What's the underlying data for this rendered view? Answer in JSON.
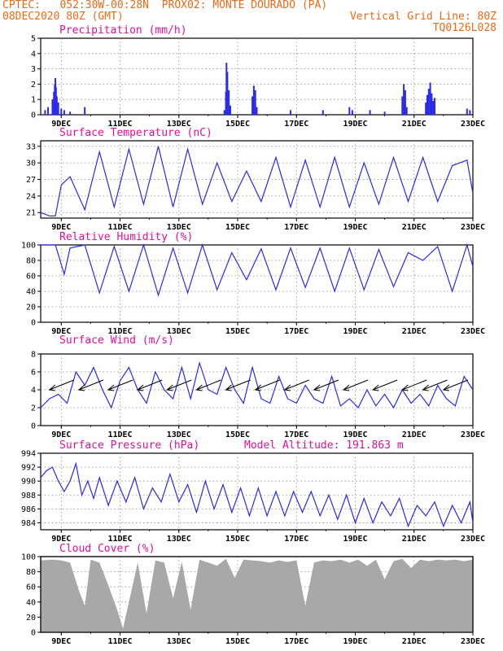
{
  "header": {
    "left1": "CPTEC:   052:30W-00:28N  PROX02: MONTE DOURADO (PA)",
    "left2": "08DEC2020 80Z (GMT)",
    "right2": "Vertical Grid Line: 80Z",
    "right3": "TQ0126L028"
  },
  "colors": {
    "header": "#e86a1a",
    "title": "#e0109a",
    "series": "#2a2ae8",
    "cloud": "#a8a8a8"
  },
  "x_axis": {
    "ticks": [
      "9DEC",
      "11DEC",
      "13DEC",
      "15DEC",
      "17DEC",
      "19DEC",
      "21DEC",
      "23DEC"
    ],
    "day_range": [
      8.3,
      23.0
    ]
  },
  "chart_data": [
    {
      "type": "bar",
      "title": "Precipitation (mm/h)",
      "ylim": [
        0,
        5
      ],
      "yticks": [
        "0",
        "1",
        "2",
        "3",
        "4",
        "5"
      ],
      "grid": true,
      "series": [
        {
          "days": [
            8.45,
            8.55,
            8.7,
            8.75,
            8.78,
            8.8,
            8.82,
            8.85,
            8.9,
            9.0,
            9.1,
            9.3,
            9.8,
            14.55,
            14.6,
            14.62,
            14.65,
            14.7,
            14.75,
            15.5,
            15.55,
            15.6,
            15.65,
            16.8,
            17.9,
            18.8,
            18.9,
            19.5,
            20.0,
            20.6,
            20.65,
            20.7,
            20.75,
            21.4,
            21.45,
            21.5,
            21.55,
            21.6,
            21.65,
            21.7,
            22.8,
            22.9
          ],
          "values": [
            0.3,
            0.5,
            1.0,
            1.5,
            2.0,
            2.4,
            1.8,
            1.2,
            0.8,
            0.4,
            0.3,
            0.2,
            0.5,
            0.3,
            1.5,
            3.4,
            2.8,
            1.6,
            0.6,
            1.2,
            1.9,
            1.6,
            0.5,
            0.3,
            0.3,
            0.5,
            0.3,
            0.3,
            0.2,
            1.2,
            2.0,
            1.6,
            0.5,
            0.8,
            1.3,
            1.7,
            2.1,
            1.4,
            0.9,
            1.1,
            0.4,
            0.3
          ]
        }
      ]
    },
    {
      "type": "line",
      "title": "Surface Temperature (nC)",
      "ylim": [
        20,
        34
      ],
      "yticks": [
        "21",
        "24",
        "27",
        "30",
        "33"
      ],
      "grid": true,
      "series": [
        {
          "days": [
            8.3,
            8.6,
            8.8,
            9.0,
            9.3,
            9.8,
            10.3,
            10.8,
            11.3,
            11.8,
            12.3,
            12.8,
            13.3,
            13.8,
            14.3,
            14.8,
            15.3,
            15.8,
            16.3,
            16.8,
            17.3,
            17.8,
            18.3,
            18.8,
            19.3,
            19.8,
            20.3,
            20.8,
            21.3,
            21.8,
            22.3,
            22.8,
            23.0
          ],
          "values": [
            21,
            20.4,
            20.4,
            26,
            27.5,
            21.5,
            32,
            22,
            32.5,
            22.5,
            33,
            22,
            32.5,
            22.5,
            30,
            23,
            28.5,
            23,
            31,
            22,
            30.5,
            22,
            31,
            22,
            30,
            22.5,
            31,
            23,
            31,
            23,
            29.5,
            30.5,
            24.5
          ]
        }
      ]
    },
    {
      "type": "line",
      "title": "Relative Humidity (%)",
      "ylim": [
        0,
        100
      ],
      "yticks": [
        "0",
        "20",
        "40",
        "60",
        "80",
        "100"
      ],
      "grid": true,
      "series": [
        {
          "days": [
            8.3,
            8.6,
            8.8,
            9.1,
            9.3,
            9.8,
            10.3,
            10.8,
            11.3,
            11.8,
            12.3,
            12.8,
            13.3,
            13.8,
            14.3,
            14.8,
            15.3,
            15.8,
            16.3,
            16.8,
            17.3,
            17.8,
            18.3,
            18.8,
            19.3,
            19.8,
            20.3,
            20.8,
            21.3,
            21.8,
            22.3,
            22.8,
            23.0
          ],
          "values": [
            100,
            100,
            100,
            62,
            96,
            100,
            38,
            98,
            40,
            100,
            35,
            96,
            38,
            100,
            42,
            90,
            55,
            95,
            42,
            96,
            45,
            96,
            40,
            96,
            42,
            94,
            46,
            90,
            80,
            98,
            40,
            100,
            72
          ]
        }
      ]
    },
    {
      "type": "line",
      "title": "Surface Wind (m/s)",
      "ylim": [
        0,
        8
      ],
      "yticks": [
        "0",
        "2",
        "4",
        "6",
        "8"
      ],
      "grid": true,
      "series": [
        {
          "days": [
            8.3,
            8.6,
            8.9,
            9.2,
            9.5,
            9.8,
            10.1,
            10.4,
            10.7,
            11.0,
            11.3,
            11.6,
            11.9,
            12.2,
            12.5,
            12.8,
            13.1,
            13.4,
            13.7,
            14.0,
            14.3,
            14.6,
            14.9,
            15.2,
            15.5,
            15.8,
            16.1,
            16.4,
            16.7,
            17.0,
            17.3,
            17.6,
            17.9,
            18.2,
            18.5,
            18.8,
            19.1,
            19.4,
            19.7,
            20.0,
            20.3,
            20.6,
            20.9,
            21.2,
            21.5,
            21.8,
            22.1,
            22.4,
            22.7,
            23.0
          ],
          "values": [
            2,
            3,
            3.5,
            2.5,
            6,
            4.5,
            6.5,
            4,
            2,
            5,
            6.5,
            4,
            2.5,
            6,
            4,
            3,
            6.5,
            3,
            7,
            4,
            3.5,
            6.5,
            4,
            2.5,
            6.5,
            3,
            2.5,
            5.5,
            3,
            2.5,
            4.5,
            3,
            2.5,
            5.5,
            2.2,
            3,
            2,
            4,
            2.2,
            3.5,
            2,
            4,
            2.5,
            3.5,
            2.2,
            4.5,
            3,
            2.2,
            5.5,
            4
          ]
        }
      ],
      "wind_arrow_days": [
        8.6,
        9.6,
        10.6,
        11.6,
        12.6,
        13.6,
        14.6,
        15.6,
        16.6,
        17.6,
        18.6,
        19.6,
        20.6,
        21.3,
        22.0
      ]
    },
    {
      "type": "line",
      "title": "Surface Pressure (hPa)",
      "annotation": "Model Altitude: 191.863 m",
      "ylim": [
        983,
        994
      ],
      "yticks": [
        "984",
        "986",
        "988",
        "990",
        "992",
        "994"
      ],
      "grid": true,
      "series": [
        {
          "days": [
            8.3,
            8.5,
            8.7,
            8.9,
            9.1,
            9.3,
            9.5,
            9.7,
            9.9,
            10.1,
            10.3,
            10.6,
            10.9,
            11.2,
            11.5,
            11.8,
            12.1,
            12.4,
            12.7,
            13.0,
            13.3,
            13.6,
            13.9,
            14.2,
            14.5,
            14.8,
            15.1,
            15.4,
            15.7,
            16.0,
            16.3,
            16.6,
            16.9,
            17.2,
            17.5,
            17.8,
            18.1,
            18.4,
            18.7,
            19.0,
            19.3,
            19.6,
            19.9,
            20.2,
            20.5,
            20.8,
            21.1,
            21.4,
            21.7,
            22.0,
            22.3,
            22.6,
            22.9,
            23.0
          ],
          "values": [
            990.5,
            991.5,
            992,
            990,
            988.5,
            990,
            992.5,
            988,
            990,
            987.5,
            990.5,
            986.5,
            990,
            987,
            990.5,
            986,
            989,
            987,
            991,
            987,
            989.5,
            985.5,
            990,
            986,
            989.5,
            985.5,
            989,
            985,
            989,
            985,
            988.5,
            985,
            988.5,
            985.5,
            988.5,
            985,
            988,
            984.5,
            988,
            984,
            987.5,
            984,
            987,
            985,
            987.5,
            983.5,
            986.5,
            985,
            987,
            983.5,
            986.5,
            984,
            987,
            984
          ]
        }
      ]
    },
    {
      "type": "area",
      "title": "Cloud Cover (%)",
      "ylim": [
        0,
        100
      ],
      "yticks": [
        "0",
        "20",
        "40",
        "60",
        "80",
        "100"
      ],
      "grid": true,
      "series": [
        {
          "days": [
            8.3,
            8.7,
            9.0,
            9.3,
            9.6,
            9.8,
            10.0,
            10.3,
            10.6,
            10.9,
            11.1,
            11.3,
            11.6,
            11.9,
            12.2,
            12.5,
            12.8,
            13.1,
            13.4,
            13.7,
            14.0,
            14.3,
            14.6,
            14.9,
            15.2,
            15.5,
            15.8,
            16.1,
            16.4,
            16.7,
            17.0,
            17.3,
            17.6,
            17.9,
            18.2,
            18.5,
            18.8,
            19.1,
            19.4,
            19.7,
            20.0,
            20.3,
            20.6,
            20.9,
            21.2,
            21.5,
            21.8,
            22.1,
            22.4,
            22.7,
            23.0
          ],
          "values": [
            95,
            96,
            95,
            92,
            55,
            35,
            96,
            92,
            62,
            30,
            5,
            40,
            92,
            25,
            95,
            92,
            45,
            93,
            30,
            96,
            92,
            88,
            97,
            72,
            96,
            95,
            94,
            92,
            95,
            93,
            95,
            35,
            92,
            95,
            94,
            96,
            92,
            96,
            88,
            96,
            70,
            94,
            97,
            85,
            96,
            94,
            96,
            95,
            96,
            94,
            96
          ]
        }
      ]
    }
  ]
}
